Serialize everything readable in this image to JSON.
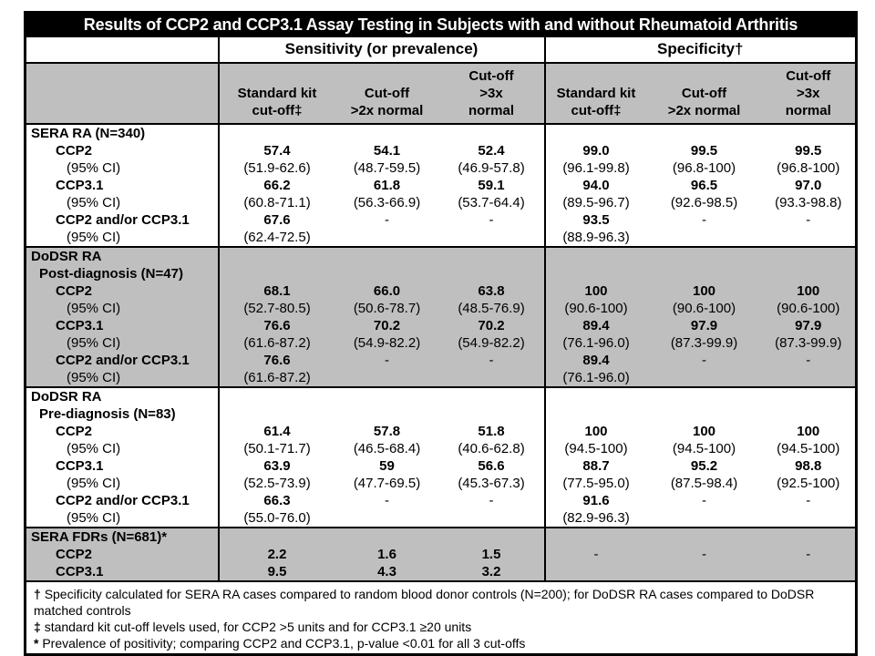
{
  "title": "Results of CCP2 and CCP3.1 Assay Testing in Subjects with and without Rheumatoid Arthritis",
  "header": {
    "sensitivity_label": "Sensitivity (or prevalence)",
    "specificity_label": "Specificity†",
    "sub_headers": [
      "Standard kit\ncut-off‡",
      "Cut-off\n>2x normal",
      "Cut-off\n>3x\nnormal",
      "Standard kit\ncut-off‡",
      "Cut-off\n>2x normal",
      "Cut-off\n>3x\nnormal"
    ]
  },
  "blocks": [
    {
      "shade": "white",
      "rows": [
        {
          "label": "SERA RA (N=340)",
          "style": "group",
          "cells": [
            "",
            "",
            "",
            "",
            "",
            ""
          ]
        },
        {
          "label": "CCP2",
          "style": "est",
          "cells": [
            "57.4",
            "54.1",
            "52.4",
            "99.0",
            "99.5",
            "99.5"
          ]
        },
        {
          "label": "(95% CI)",
          "style": "ci",
          "cells": [
            "(51.9-62.6)",
            "(48.7-59.5)",
            "(46.9-57.8)",
            "(96.1-99.8)",
            "(96.8-100)",
            "(96.8-100)"
          ]
        },
        {
          "label": "CCP3.1",
          "style": "est",
          "cells": [
            "66.2",
            "61.8",
            "59.1",
            "94.0",
            "96.5",
            "97.0"
          ]
        },
        {
          "label": "(95% CI)",
          "style": "ci",
          "cells": [
            "(60.8-71.1)",
            "(56.3-66.9)",
            "(53.7-64.4)",
            "(89.5-96.7)",
            "(92.6-98.5)",
            "(93.3-98.8)"
          ]
        },
        {
          "label": "CCP2 and/or CCP3.1",
          "style": "est",
          "cells": [
            "67.6",
            "-",
            "-",
            "93.5",
            "-",
            "-"
          ]
        },
        {
          "label": "(95% CI)",
          "style": "ci",
          "cells": [
            "(62.4-72.5)",
            "",
            "",
            "(88.9-96.3)",
            "",
            ""
          ]
        }
      ]
    },
    {
      "shade": "gray",
      "rows": [
        {
          "label": "DoDSR RA",
          "style": "group",
          "cells": [
            "",
            "",
            "",
            "",
            "",
            ""
          ]
        },
        {
          "label": "Post-diagnosis (N=47)",
          "style": "subgroup",
          "cells": [
            "",
            "",
            "",
            "",
            "",
            ""
          ]
        },
        {
          "label": "CCP2",
          "style": "est",
          "cells": [
            "68.1",
            "66.0",
            "63.8",
            "100",
            "100",
            "100"
          ]
        },
        {
          "label": "(95% CI)",
          "style": "ci",
          "cells": [
            "(52.7-80.5)",
            "(50.6-78.7)",
            "(48.5-76.9)",
            "(90.6-100)",
            "(90.6-100)",
            "(90.6-100)"
          ]
        },
        {
          "label": "CCP3.1",
          "style": "est",
          "cells": [
            "76.6",
            "70.2",
            "70.2",
            "89.4",
            "97.9",
            "97.9"
          ]
        },
        {
          "label": "(95% CI)",
          "style": "ci",
          "cells": [
            "(61.6-87.2)",
            "(54.9-82.2)",
            "(54.9-82.2)",
            "(76.1-96.0)",
            "(87.3-99.9)",
            "(87.3-99.9)"
          ]
        },
        {
          "label": "CCP2 and/or CCP3.1",
          "style": "est",
          "cells": [
            "76.6",
            "-",
            "-",
            "89.4",
            "-",
            "-"
          ]
        },
        {
          "label": "(95% CI)",
          "style": "ci",
          "cells": [
            "(61.6-87.2)",
            "",
            "",
            "(76.1-96.0)",
            "",
            ""
          ]
        }
      ]
    },
    {
      "shade": "white",
      "rows": [
        {
          "label": "DoDSR RA",
          "style": "group",
          "cells": [
            "",
            "",
            "",
            "",
            "",
            ""
          ]
        },
        {
          "label": "Pre-diagnosis (N=83)",
          "style": "subgroup",
          "cells": [
            "",
            "",
            "",
            "",
            "",
            ""
          ]
        },
        {
          "label": "CCP2",
          "style": "est",
          "cells": [
            "61.4",
            "57.8",
            "51.8",
            "100",
            "100",
            "100"
          ]
        },
        {
          "label": "(95% CI)",
          "style": "ci",
          "cells": [
            "(50.1-71.7)",
            "(46.5-68.4)",
            "(40.6-62.8)",
            "(94.5-100)",
            "(94.5-100)",
            "(94.5-100)"
          ]
        },
        {
          "label": "CCP3.1",
          "style": "est",
          "cells": [
            "63.9",
            "59",
            "56.6",
            "88.7",
            "95.2",
            "98.8"
          ]
        },
        {
          "label": "(95% CI)",
          "style": "ci",
          "cells": [
            "(52.5-73.9)",
            "(47.7-69.5)",
            "(45.3-67.3)",
            "(77.5-95.0)",
            "(87.5-98.4)",
            "(92.5-100)"
          ]
        },
        {
          "label": "CCP2 and/or CCP3.1",
          "style": "est",
          "cells": [
            "66.3",
            "-",
            "-",
            "91.6",
            "-",
            "-"
          ]
        },
        {
          "label": "(95% CI)",
          "style": "ci",
          "cells": [
            "(55.0-76.0)",
            "",
            "",
            "(82.9-96.3)",
            "",
            ""
          ]
        }
      ]
    },
    {
      "shade": "gray",
      "rows": [
        {
          "label": "SERA FDRs (N=681)*",
          "style": "group",
          "cells": [
            "",
            "",
            "",
            "",
            "",
            ""
          ]
        },
        {
          "label": "CCP2",
          "style": "est",
          "cells": [
            "2.2",
            "1.6",
            "1.5",
            "-",
            "-",
            "-"
          ]
        },
        {
          "label": "CCP3.1",
          "style": "est",
          "cells": [
            "9.5",
            "4.3",
            "3.2",
            "",
            "",
            ""
          ]
        }
      ]
    }
  ],
  "footnotes": [
    {
      "marker": "†",
      "text": "Specificity calculated for SERA RA cases compared to random blood donor controls (N=200); for DoDSR RA cases compared to DoDSR matched controls"
    },
    {
      "marker": "‡",
      "text": "standard kit cut-off levels used, for CCP2 >5 units and for CCP3.1 ≥20 units"
    },
    {
      "marker": "*",
      "text": "Prevalence of positivity; comparing CCP2 and CCP3.1, p-value <0.01 for all 3 cut-offs"
    }
  ],
  "colors": {
    "header_fill": "#bfbfbf",
    "title_background": "#000000",
    "title_text": "#ffffff",
    "border": "#000000"
  }
}
